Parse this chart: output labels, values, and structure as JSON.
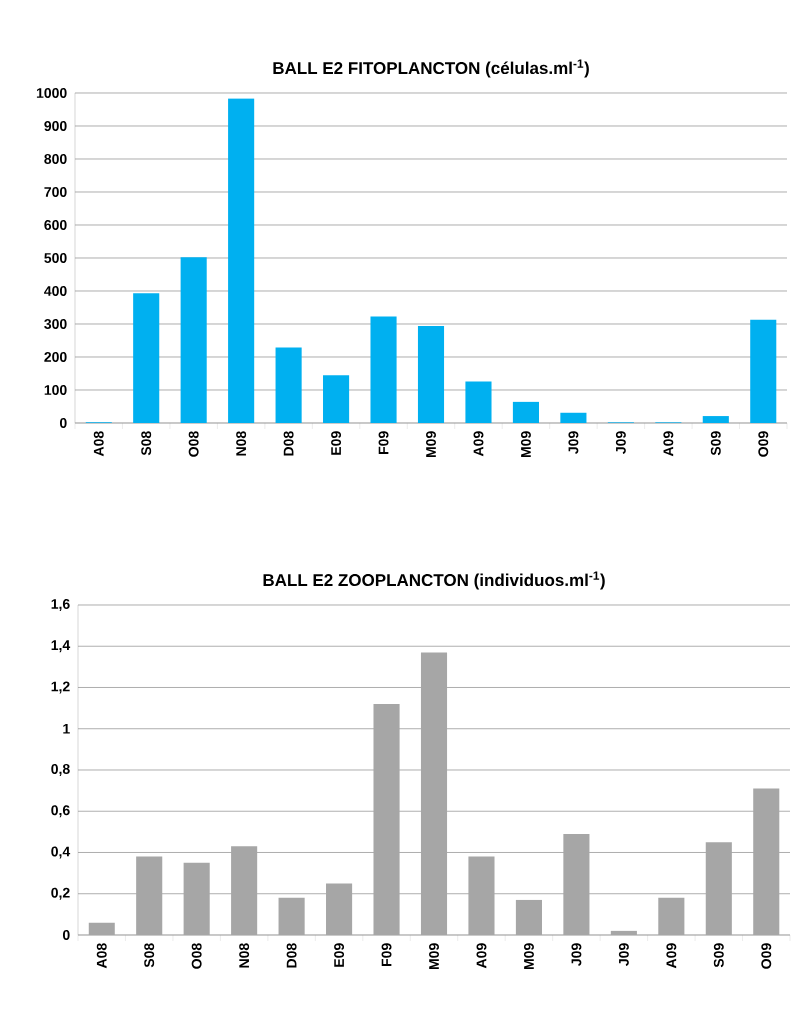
{
  "chart_data": [
    {
      "type": "bar",
      "title": "BALL E2 FITOPLANCTON (células.ml$^{-1}$)",
      "categories": [
        "A08",
        "S08",
        "O08",
        "N08",
        "D08",
        "E09",
        "F09",
        "M09",
        "A09",
        "M09",
        "J09",
        "J09",
        "A09",
        "S09",
        "O09"
      ],
      "color": "#00b0f0",
      "values": [
        2,
        393,
        502,
        983,
        229,
        145,
        323,
        294,
        126,
        64,
        31,
        2,
        2,
        21,
        313
      ],
      "ylim": [
        0,
        1000
      ],
      "yticks": [
        0,
        100,
        200,
        300,
        400,
        500,
        600,
        700,
        800,
        900,
        1000
      ],
      "grid": "y"
    },
    {
      "type": "bar",
      "title": "BALL E2 ZOOPLANCTON (individuos.ml$^{-1}$)",
      "categories": [
        "A08",
        "S08",
        "O08",
        "N08",
        "D08",
        "E09",
        "F09",
        "M09",
        "A09",
        "M09",
        "J09",
        "J09",
        "A09",
        "S09",
        "O09"
      ],
      "color": "#a6a6a6",
      "values": [
        0.06,
        0.38,
        0.35,
        0.43,
        0.18,
        0.25,
        1.12,
        1.37,
        0.38,
        0.17,
        0.49,
        0.02,
        0.18,
        0.45,
        0.71
      ],
      "ylim": [
        0,
        1.6
      ],
      "yticks": [
        0,
        {
          "value": 0.2,
          "label": "0,2"
        },
        {
          "value": 0.4,
          "label": "0,4"
        },
        {
          "value": 0.6,
          "label": "0,6"
        },
        {
          "value": 0.8,
          "label": "0,8"
        },
        1,
        {
          "value": 1.2,
          "label": "1,2"
        },
        {
          "value": 1.4,
          "label": "1,4"
        },
        {
          "value": 1.6,
          "label": "1,6"
        }
      ],
      "grid": "y"
    }
  ]
}
